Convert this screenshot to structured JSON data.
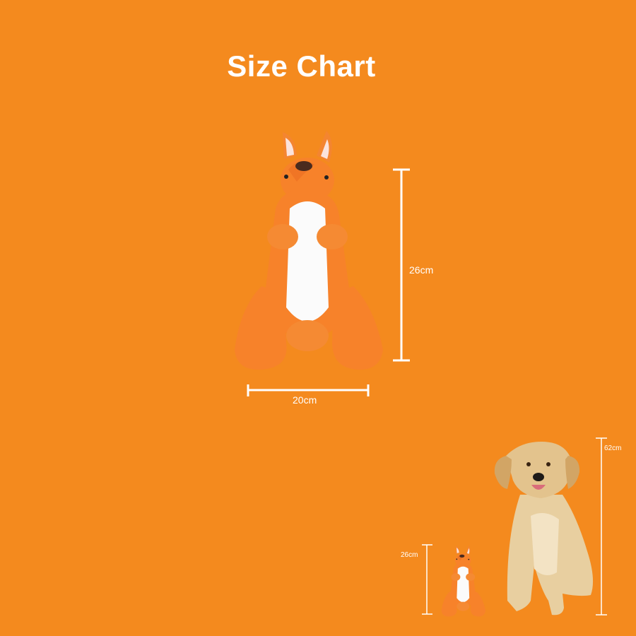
{
  "title": "Size Chart",
  "main_product": {
    "height_label": "26cm",
    "width_label": "20cm"
  },
  "comparison": {
    "toy_height_label": "26cm",
    "dog_height_label": "62cm"
  },
  "colors": {
    "background": "#F48A1E",
    "toy_orange": "#F77F23",
    "toy_white": "#FFFFFF",
    "dog_fur": "#E8CFA0"
  },
  "icons": {
    "toy": "kangaroo-plush-toy",
    "dog": "golden-retriever-dog"
  }
}
